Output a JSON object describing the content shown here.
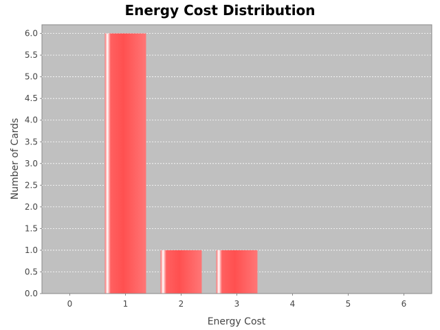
{
  "chart_data": {
    "type": "bar",
    "title": "Energy Cost Distribution",
    "xlabel": "Energy Cost",
    "ylabel": "Number of Cards",
    "categories": [
      "0",
      "1",
      "2",
      "3",
      "4",
      "5",
      "6"
    ],
    "values": [
      0,
      6,
      1,
      1,
      0,
      0,
      0
    ],
    "ylim": [
      0,
      6.2
    ],
    "yticks": [
      "0.0",
      "0.5",
      "1.0",
      "1.5",
      "2.0",
      "2.5",
      "3.0",
      "3.5",
      "4.0",
      "4.5",
      "5.0",
      "5.5",
      "6.0"
    ],
    "grid": true,
    "legend": "none",
    "colors": {
      "bar": "#ff5555",
      "bar_highlight": "#ffffff",
      "plot_background": "#c0c0c0",
      "gridline": "#ffffff"
    }
  }
}
